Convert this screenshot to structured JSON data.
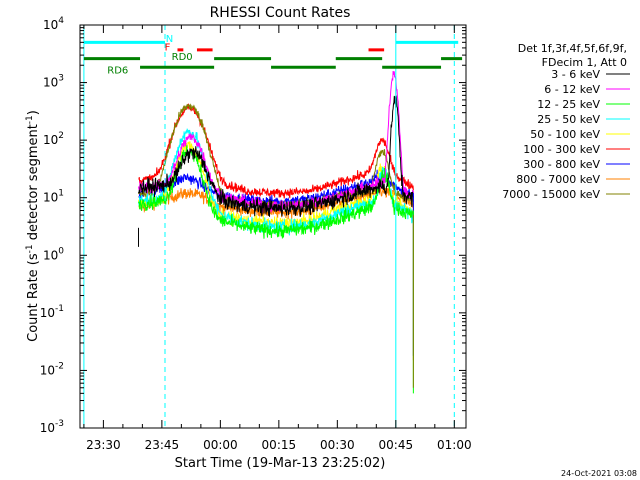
{
  "chart_data": {
    "type": "line",
    "title": "RHESSI Count Rates",
    "xlabel": "Start Time (19-Mar-13 23:25:02)",
    "ylabel_main": "Count Rate (s",
    "ylabel_sup1": "-1",
    "ylabel_mid": " detector segment",
    "ylabel_sup2": "-1",
    "ylabel_end": ")",
    "y_scale": "log",
    "ylim": [
      0.001,
      10000
    ],
    "xlim_minutes_from_2325": [
      -1,
      98
    ],
    "x_ticks": [
      {
        "label": "23:30",
        "value": 5
      },
      {
        "label": "23:45",
        "value": 20
      },
      {
        "label": "00:00",
        "value": 35
      },
      {
        "label": "00:15",
        "value": 50
      },
      {
        "label": "00:30",
        "value": 65
      },
      {
        "label": "00:45",
        "value": 80
      },
      {
        "label": "01:00",
        "value": 95
      }
    ],
    "y_ticks": [
      {
        "base": "10",
        "exp": "-3",
        "value": 0.001
      },
      {
        "base": "10",
        "exp": "-2",
        "value": 0.01
      },
      {
        "base": "10",
        "exp": "-1",
        "value": 0.1
      },
      {
        "base": "10",
        "exp": "0",
        "value": 1
      },
      {
        "base": "10",
        "exp": "1",
        "value": 10
      },
      {
        "base": "10",
        "exp": "2",
        "value": 100
      },
      {
        "base": "10",
        "exp": "3",
        "value": 1000
      },
      {
        "base": "10",
        "exp": "4",
        "value": 10000
      }
    ],
    "legend": {
      "placement": "right",
      "header": [
        "Det 1f,3f,4f,5f,6f,9f,",
        "FDecim 1, Att 0"
      ],
      "entries": [
        {
          "label": "3 - 6 keV",
          "color": "#000000"
        },
        {
          "label": "6 - 12 keV",
          "color": "#ff00ff"
        },
        {
          "label": "12 - 25 keV",
          "color": "#00ff00"
        },
        {
          "label": "25 - 50 keV",
          "color": "#00ffff"
        },
        {
          "label": "50 - 100 keV",
          "color": "#ffff00"
        },
        {
          "label": "100 - 300 keV",
          "color": "#ff0000"
        },
        {
          "label": "300 - 800 keV",
          "color": "#0000ff"
        },
        {
          "label": "800 - 7000 keV",
          "color": "#ff8000"
        },
        {
          "label": "7000 - 15000 keV",
          "color": "#808000"
        }
      ]
    },
    "data_start": 14.0,
    "data_end": 84.5,
    "series": [
      {
        "color": "#ff8000",
        "key": [
          [
            14,
            6.5
          ],
          [
            20,
            9
          ],
          [
            26,
            12
          ],
          [
            30,
            11
          ],
          [
            35,
            7
          ],
          [
            42,
            6
          ],
          [
            50,
            5.5
          ],
          [
            58,
            6
          ],
          [
            64,
            8
          ],
          [
            70,
            10
          ],
          [
            76,
            13
          ],
          [
            80,
            11
          ],
          [
            84,
            7.5
          ]
        ],
        "noise": 0.05,
        "flares": []
      },
      {
        "color": "#0000ff",
        "key": [
          [
            14,
            12
          ],
          [
            20,
            15
          ],
          [
            26,
            20
          ],
          [
            30,
            16
          ],
          [
            35,
            11
          ],
          [
            42,
            9
          ],
          [
            50,
            8.5
          ],
          [
            58,
            9.5
          ],
          [
            64,
            12
          ],
          [
            70,
            16
          ],
          [
            76,
            20
          ],
          [
            80,
            16
          ],
          [
            84,
            11
          ]
        ],
        "noise": 0.05,
        "flares": [
          {
            "c": 27,
            "a": 3,
            "w": 2.2
          },
          {
            "c": 76,
            "a": 4,
            "w": 1.2
          }
        ]
      },
      {
        "color": "#ff0000",
        "key": [
          [
            14,
            20
          ],
          [
            20,
            22
          ],
          [
            26,
            26
          ],
          [
            30,
            24
          ],
          [
            35,
            18
          ],
          [
            42,
            13
          ],
          [
            50,
            12
          ],
          [
            58,
            13
          ],
          [
            64,
            17
          ],
          [
            70,
            23
          ],
          [
            76,
            30
          ],
          [
            80,
            24
          ],
          [
            84,
            16
          ]
        ],
        "noise": 0.04,
        "flares": [
          {
            "c": 27,
            "a": 330,
            "w": 2.8
          },
          {
            "c": 76.5,
            "a": 70,
            "w": 1.3
          }
        ]
      },
      {
        "color": "#808000",
        "key": [
          [
            14,
            12
          ],
          [
            20,
            13
          ],
          [
            26,
            14
          ],
          [
            30,
            12
          ],
          [
            35,
            9
          ],
          [
            42,
            8
          ],
          [
            50,
            7.5
          ],
          [
            58,
            8
          ],
          [
            64,
            10
          ],
          [
            70,
            12
          ],
          [
            76,
            14
          ],
          [
            80,
            12
          ],
          [
            84,
            9
          ]
        ],
        "noise": 0.04,
        "flares": [
          {
            "c": 27,
            "a": 380,
            "w": 2.7
          },
          {
            "c": 76.5,
            "a": 50,
            "w": 1.2
          }
        ]
      },
      {
        "color": "#ffff00",
        "key": [
          [
            14,
            8
          ],
          [
            20,
            9
          ],
          [
            26,
            10
          ],
          [
            30,
            8
          ],
          [
            35,
            5
          ],
          [
            42,
            4
          ],
          [
            50,
            3.6
          ],
          [
            58,
            4
          ],
          [
            64,
            6
          ],
          [
            70,
            8
          ],
          [
            76,
            10
          ],
          [
            80,
            8
          ],
          [
            84,
            6
          ]
        ],
        "noise": 0.05,
        "flares": [
          {
            "c": 27,
            "a": 70,
            "w": 2.3
          },
          {
            "c": 76.5,
            "a": 25,
            "w": 1.1
          }
        ]
      },
      {
        "color": "#00ffff",
        "key": [
          [
            14,
            9
          ],
          [
            20,
            10
          ],
          [
            26,
            11
          ],
          [
            30,
            9
          ],
          [
            35,
            5
          ],
          [
            42,
            3.5
          ],
          [
            50,
            3.0
          ],
          [
            58,
            3.5
          ],
          [
            64,
            5
          ],
          [
            70,
            7
          ],
          [
            76,
            9
          ],
          [
            80,
            7.5
          ],
          [
            84,
            5
          ]
        ],
        "noise": 0.06,
        "flares": [
          {
            "c": 27,
            "a": 130,
            "w": 2.3
          },
          {
            "c": 77,
            "a": 20,
            "w": 1.0
          }
        ]
      },
      {
        "color": "#00ff00",
        "key": [
          [
            14,
            8
          ],
          [
            20,
            8.5
          ],
          [
            26,
            9
          ],
          [
            30,
            7
          ],
          [
            35,
            4
          ],
          [
            42,
            3.0
          ],
          [
            50,
            2.6
          ],
          [
            58,
            3.0
          ],
          [
            64,
            4
          ],
          [
            70,
            5.5
          ],
          [
            76,
            8
          ],
          [
            80,
            6.5
          ],
          [
            84,
            5
          ]
        ],
        "noise": 0.06,
        "flares": [
          {
            "c": 27,
            "a": 55,
            "w": 2.2
          },
          {
            "c": 77,
            "a": 18,
            "w": 1.0
          }
        ]
      },
      {
        "color": "#ff00ff",
        "key": [
          [
            14,
            15
          ],
          [
            20,
            16
          ],
          [
            26,
            18
          ],
          [
            30,
            16
          ],
          [
            35,
            11
          ],
          [
            42,
            8
          ],
          [
            50,
            7
          ],
          [
            58,
            8
          ],
          [
            64,
            10
          ],
          [
            70,
            14
          ],
          [
            76,
            18
          ],
          [
            80,
            15
          ],
          [
            84,
            11
          ]
        ],
        "noise": 0.05,
        "flares": [
          {
            "c": 27.5,
            "a": 95,
            "w": 2.3
          },
          {
            "c": 79.5,
            "a": 1400,
            "w": 0.7
          }
        ]
      },
      {
        "color": "#000000",
        "key": [
          [
            14,
            15
          ],
          [
            20,
            16
          ],
          [
            26,
            18
          ],
          [
            30,
            15
          ],
          [
            35,
            9
          ],
          [
            42,
            7
          ],
          [
            50,
            6.5
          ],
          [
            58,
            7
          ],
          [
            64,
            9
          ],
          [
            70,
            12
          ],
          [
            76,
            16
          ],
          [
            80,
            13
          ],
          [
            84,
            10
          ]
        ],
        "noise": 0.07,
        "flares": [
          {
            "c": 28,
            "a": 45,
            "w": 2.4
          },
          {
            "c": 79.8,
            "a": 500,
            "w": 0.6
          }
        ]
      }
    ],
    "drop_lines": [
      {
        "color": "#ff8000",
        "x": 84.5,
        "from": 8,
        "to": 0.015
      },
      {
        "color": "#0000ff",
        "x": 84.5,
        "from": 12,
        "to": 0.018
      },
      {
        "color": "#00ff00",
        "x": 84.5,
        "from": 6,
        "to": 0.004
      },
      {
        "color": "#808000",
        "x": 84.5,
        "from": 5,
        "to": 0.005
      }
    ],
    "start_tick": {
      "x": 14.0,
      "from": 1.4,
      "to": 3
    },
    "vlines": [
      {
        "x": 0.0,
        "color": "#00ffff",
        "dash": false
      },
      {
        "x": 20.8,
        "color": "#00ffff",
        "dash": true
      },
      {
        "x": 80.0,
        "color": "#00ffff",
        "dash": false
      },
      {
        "x": 95.0,
        "color": "#00ffff",
        "dash": true
      }
    ],
    "flag_bars": [
      {
        "label": "N",
        "color": "#00ffff",
        "y": 5000,
        "segments": [
          [
            0,
            20.8
          ],
          [
            80,
            96
          ]
        ],
        "label_x": 21.0,
        "label_y": 6000
      },
      {
        "label": "F",
        "color": "#ff0000",
        "y": 3700,
        "segments": [
          [
            24,
            25.5
          ],
          [
            29,
            33
          ],
          [
            73,
            77
          ]
        ],
        "label_x": 20.7,
        "label_y": 4200
      },
      {
        "label": "RD0",
        "color": "#008000",
        "y": 2600,
        "segments": [
          [
            0,
            14.4
          ],
          [
            33.4,
            48
          ],
          [
            64.6,
            76.5
          ],
          [
            91.6,
            97
          ]
        ],
        "label_x": 22.5,
        "label_y": 2900
      },
      {
        "label": "RD6",
        "color": "#008000",
        "y": 1850,
        "segments": [
          [
            14.4,
            33.4
          ],
          [
            48,
            64.6
          ],
          [
            76.5,
            91.6
          ]
        ],
        "label_x": 6.0,
        "label_y": 1700
      }
    ],
    "timestamp": "24-Oct-2021 03:08"
  }
}
